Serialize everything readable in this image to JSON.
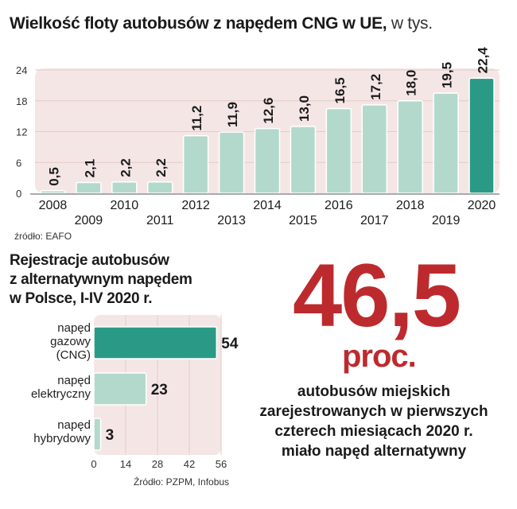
{
  "chart1": {
    "title": "Wielkość floty autobusów z napędem CNG w UE,",
    "unit": "w tys.",
    "source": "źródło: EAFO",
    "chart_data": {
      "type": "bar",
      "categories": [
        "2008",
        "2009",
        "2010",
        "2011",
        "2012",
        "2013",
        "2014",
        "2015",
        "2016",
        "2017",
        "2018",
        "2019",
        "2020"
      ],
      "values": [
        0.5,
        2.1,
        2.2,
        2.2,
        11.2,
        11.9,
        12.6,
        13.0,
        16.5,
        17.2,
        18.0,
        19.5,
        22.4
      ],
      "value_labels": [
        "0,5",
        "2,1",
        "2,2",
        "2,2",
        "11,2",
        "11,9",
        "12,6",
        "13,0",
        "16,5",
        "17,2",
        "18,0",
        "19,5",
        "22,4"
      ],
      "yticks": [
        0,
        6,
        12,
        18,
        24
      ],
      "ylim": [
        0,
        24
      ],
      "highlight_index": 12,
      "colors": {
        "bar": "#b3d9cc",
        "highlight": "#2a9a86",
        "background": "#f5e6e6"
      }
    }
  },
  "chart2": {
    "title_lines": [
      "Rejestracje autobusów",
      "z alternatywnym napędem",
      "w Polsce, I-IV 2020 r."
    ],
    "source": "Źródło: PZPM, Infobus",
    "chart_data": {
      "type": "bar",
      "orientation": "horizontal",
      "categories": [
        [
          "napęd",
          "gazowy",
          "(CNG)"
        ],
        [
          "napęd",
          "elektryczny"
        ],
        [
          "napęd",
          "hybrydowy"
        ]
      ],
      "values": [
        54,
        23,
        3
      ],
      "xticks": [
        0,
        14,
        28,
        42,
        56
      ],
      "xlim": [
        0,
        56
      ],
      "highlight_index": 0,
      "colors": {
        "bar": "#b3d9cc",
        "highlight": "#2a9a86",
        "background": "#f5e6e6"
      }
    }
  },
  "highlight": {
    "number": "46,5",
    "unit": "proc.",
    "caption_lines": [
      "autobusów miejskich",
      "zarejestrowanych w pierwszych",
      "czterech miesiącach 2020 r.",
      "miało napęd alternatywny"
    ],
    "color": "#bd2a2e"
  }
}
